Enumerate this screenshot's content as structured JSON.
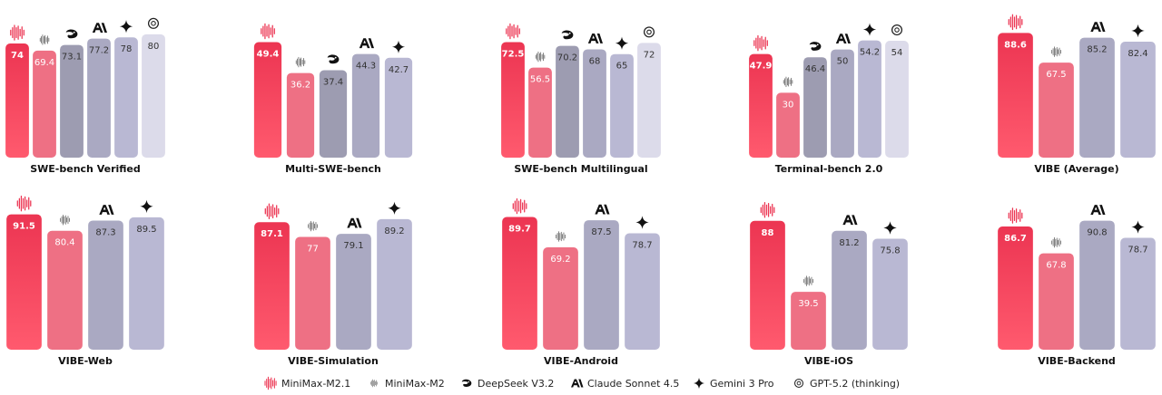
{
  "legend": [
    {
      "name": "MiniMax-M2.1",
      "color": "#ec3552"
    },
    {
      "name": "MiniMax-M2",
      "color": "#ee7084"
    },
    {
      "name": "DeepSeek V3.2",
      "color": "#9d9cb1"
    },
    {
      "name": "Claude Sonnet 4.5",
      "color": "#aaa9c2"
    },
    {
      "name": "Gemini 3 Pro",
      "color": "#b9b8d3"
    },
    {
      "name": "GPT-5.2 (thinking)",
      "color": "#dcdbea"
    }
  ],
  "chart_data": [
    {
      "type": "bar",
      "title": "SWE-bench Verified",
      "values": [
        74,
        69.4,
        73.1,
        77.2,
        78,
        80
      ],
      "ylim": [
        0,
        94
      ]
    },
    {
      "type": "bar",
      "title": "Multi-SWE-bench",
      "values": [
        49.4,
        36.2,
        37.4,
        44.3,
        42.7,
        null
      ],
      "ylim": [
        0,
        62
      ]
    },
    {
      "type": "bar",
      "title": "SWE-bench Multilingual",
      "values": [
        72.5,
        56.5,
        70.2,
        68,
        65,
        72
      ],
      "ylim": [
        0,
        91
      ]
    },
    {
      "type": "bar",
      "title": "Terminal-bench 2.0",
      "values": [
        47.9,
        30,
        46.4,
        50,
        54.2,
        54
      ],
      "ylim": [
        0,
        67
      ]
    },
    {
      "type": "bar",
      "title": "VIBE (Average)",
      "values": [
        88.6,
        67.5,
        null,
        85.2,
        82.4,
        null
      ],
      "ylim": [
        0,
        103
      ]
    },
    {
      "type": "bar",
      "title": "VIBE-Web",
      "values": [
        91.5,
        80.4,
        null,
        87.3,
        89.5,
        null
      ],
      "ylim": [
        0,
        98
      ]
    },
    {
      "type": "bar",
      "title": "VIBE-Simulation",
      "values": [
        87.1,
        77,
        null,
        79.1,
        89.2,
        null
      ],
      "ylim": [
        0,
        99
      ]
    },
    {
      "type": "bar",
      "title": "VIBE-Android",
      "values": [
        89.7,
        69.2,
        null,
        87.5,
        78.7,
        null
      ],
      "ylim": [
        0,
        98
      ]
    },
    {
      "type": "bar",
      "title": "VIBE-iOS",
      "values": [
        88,
        39.5,
        null,
        81.2,
        75.8,
        null
      ],
      "ylim": [
        0,
        99
      ]
    },
    {
      "type": "bar",
      "title": "VIBE-Backend",
      "values": [
        86.7,
        67.8,
        null,
        90.8,
        78.7,
        null
      ],
      "ylim": [
        0,
        102
      ]
    }
  ]
}
